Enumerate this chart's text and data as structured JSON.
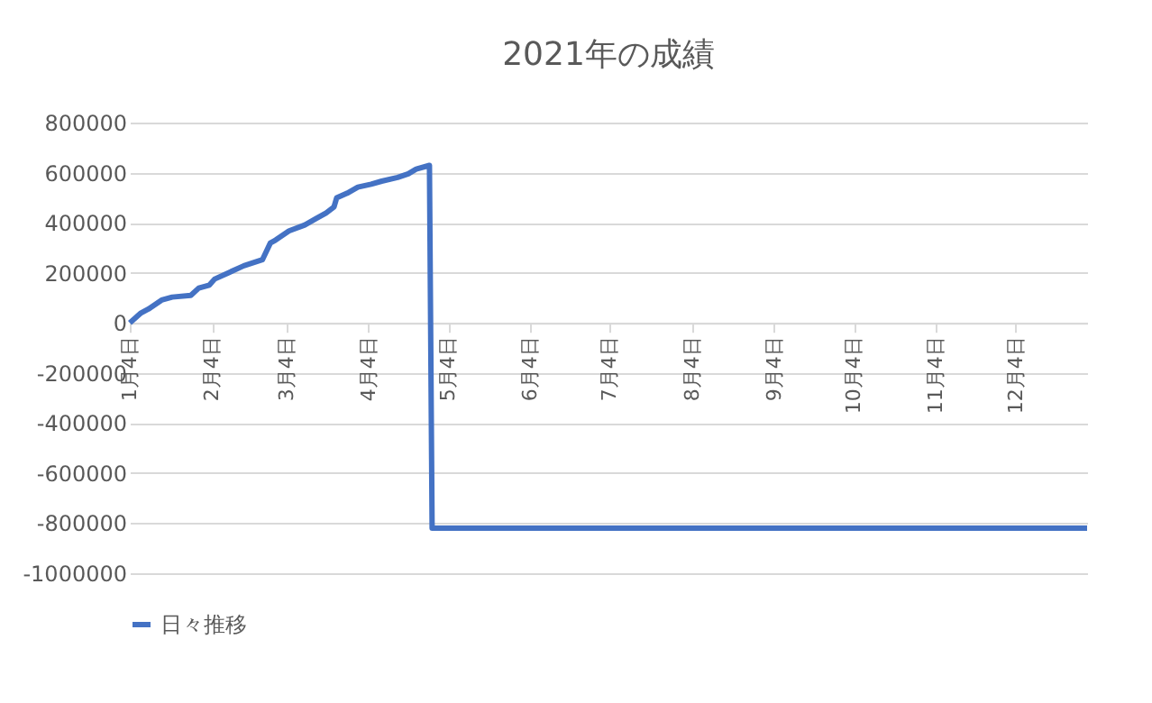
{
  "chart_data": {
    "type": "line",
    "title": "2021年の成績",
    "x": [
      "2021-01-04",
      "2021-01-08",
      "2021-01-11",
      "2021-01-16",
      "2021-01-20",
      "2021-01-27",
      "2021-01-30",
      "2021-02-03",
      "2021-02-05",
      "2021-02-10",
      "2021-02-16",
      "2021-02-23",
      "2021-02-26",
      "2021-02-28",
      "2021-03-05",
      "2021-03-11",
      "2021-03-15",
      "2021-03-19",
      "2021-03-22",
      "2021-03-23",
      "2021-03-27",
      "2021-03-31",
      "2021-04-05",
      "2021-04-09",
      "2021-04-15",
      "2021-04-19",
      "2021-04-22",
      "2021-04-27",
      "2021-04-28",
      "2021-12-31"
    ],
    "series": [
      {
        "name": "日々推移",
        "color": "#4472c4",
        "values": [
          0,
          38000,
          55000,
          91000,
          103000,
          110000,
          139000,
          151000,
          175000,
          199000,
          228000,
          252000,
          319000,
          331000,
          367000,
          391000,
          415000,
          439000,
          463000,
          499000,
          518000,
          542000,
          554000,
          566000,
          581000,
          595000,
          614000,
          629000,
          -820000,
          -820000
        ]
      }
    ],
    "xlim": [
      "2021-01-04",
      "2021-12-31"
    ],
    "xticks": [
      {
        "value": "2021-01-04",
        "label": "1月4日"
      },
      {
        "value": "2021-02-04",
        "label": "2月4日"
      },
      {
        "value": "2021-03-04",
        "label": "3月4日"
      },
      {
        "value": "2021-04-04",
        "label": "4月4日"
      },
      {
        "value": "2021-05-04",
        "label": "5月4日"
      },
      {
        "value": "2021-06-04",
        "label": "6月4日"
      },
      {
        "value": "2021-07-04",
        "label": "7月4日"
      },
      {
        "value": "2021-08-04",
        "label": "8月4日"
      },
      {
        "value": "2021-09-04",
        "label": "9月4日"
      },
      {
        "value": "2021-10-04",
        "label": "10月4日"
      },
      {
        "value": "2021-11-04",
        "label": "11月4日"
      },
      {
        "value": "2021-12-04",
        "label": "12月4日"
      }
    ],
    "ylim": [
      -1000000,
      800000
    ],
    "yticks": [
      -1000000,
      -800000,
      -600000,
      -400000,
      -200000,
      0,
      200000,
      400000,
      600000,
      800000
    ],
    "grid": "y",
    "legend": "bottom",
    "marker": "none",
    "line_style": "solid"
  }
}
